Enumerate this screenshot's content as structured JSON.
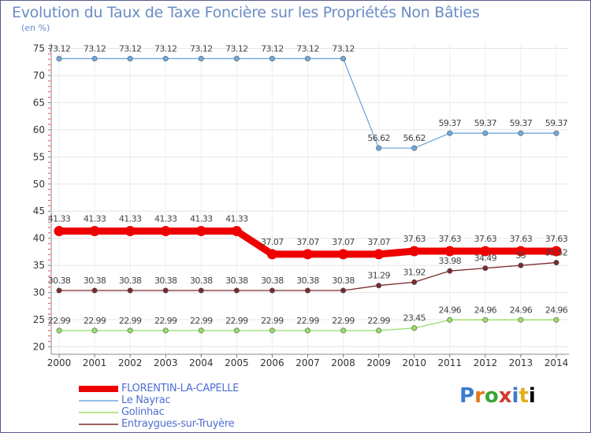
{
  "chart_data": {
    "type": "line",
    "title": "Evolution du Taux de Taxe Foncière sur les Propriétés Non Bâties",
    "ylabel": "(en %)",
    "xlabel": "",
    "ylim": [
      20,
      75
    ],
    "yticks": [
      20,
      25,
      30,
      35,
      40,
      45,
      50,
      55,
      60,
      65,
      70,
      75
    ],
    "categories": [
      "2000",
      "2001",
      "2002",
      "2003",
      "2004",
      "2005",
      "2006",
      "2007",
      "2008",
      "2009",
      "2010",
      "2011",
      "2012",
      "2013",
      "2014"
    ],
    "series": [
      {
        "name": "FLORENTIN-LA-CAPELLE",
        "color": "#ee0000",
        "emphasis": true,
        "values": [
          41.33,
          41.33,
          41.33,
          41.33,
          41.33,
          41.33,
          37.07,
          37.07,
          37.07,
          37.07,
          37.63,
          37.63,
          37.63,
          37.63,
          37.63
        ],
        "labels": [
          "41.33",
          "41.33",
          "41.33",
          "41.33",
          "41.33",
          "41.33",
          "37.07",
          "37.07",
          "37.07",
          "37.07",
          "37.63",
          "37.63",
          "37.63",
          "37.63",
          "37.63"
        ]
      },
      {
        "name": "Le Nayrac",
        "color": "#6fa8dc",
        "emphasis": false,
        "values": [
          73.12,
          73.12,
          73.12,
          73.12,
          73.12,
          73.12,
          73.12,
          73.12,
          73.12,
          56.62,
          56.62,
          59.37,
          59.37,
          59.37,
          59.37
        ],
        "labels": [
          "73.12",
          "73.12",
          "73.12",
          "73.12",
          "73.12",
          "73.12",
          "73.12",
          "73.12",
          "73.12",
          "56.62",
          "56.62",
          "59.37",
          "59.37",
          "59.37",
          "59.37"
        ]
      },
      {
        "name": "Golinhac",
        "color": "#99dd66",
        "emphasis": false,
        "values": [
          22.99,
          22.99,
          22.99,
          22.99,
          22.99,
          22.99,
          22.99,
          22.99,
          22.99,
          22.99,
          23.45,
          24.96,
          24.96,
          24.96,
          24.96
        ],
        "labels": [
          "22.99",
          "22.99",
          "22.99",
          "22.99",
          "22.99",
          "22.99",
          "22.99",
          "22.99",
          "22.99",
          "22.99",
          "23.45",
          "24.96",
          "24.96",
          "24.96",
          "24.96"
        ]
      },
      {
        "name": "Entraygues-sur-Truyère",
        "color": "#7a2a2a",
        "emphasis": false,
        "values": [
          30.38,
          30.38,
          30.38,
          30.38,
          30.38,
          30.38,
          30.38,
          30.38,
          30.38,
          31.29,
          31.92,
          33.98,
          34.49,
          35,
          35.52
        ],
        "labels": [
          "30.38",
          "30.38",
          "30.38",
          "30.38",
          "30.38",
          "30.38",
          "30.38",
          "30.38",
          "30.38",
          "31.29",
          "31.92",
          "33.98",
          "34.49",
          "35",
          "35.52"
        ]
      }
    ],
    "legend_position": "bottom-left"
  },
  "branding": {
    "logo_letters": [
      "P",
      "r",
      "o",
      "x",
      "i",
      "t",
      "i"
    ]
  }
}
